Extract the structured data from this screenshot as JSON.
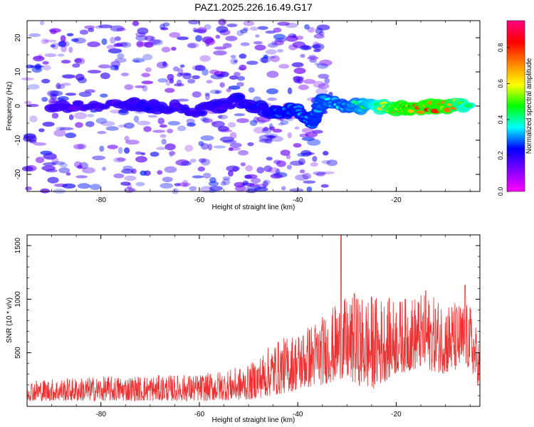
{
  "figure": {
    "title": "PAZ1.2025.226.16.49.G17"
  },
  "chart_data": [
    {
      "type": "heatmap",
      "title": "PAZ1.2025.226.16.49.G17",
      "xlabel": "Height of straight line (km)",
      "ylabel": "Frequency (Hz)",
      "xlim": [
        -95,
        -3
      ],
      "ylim": [
        -25,
        25
      ],
      "xticks": [
        -80,
        -60,
        -40,
        -20
      ],
      "yticks": [
        -20,
        -10,
        0,
        10,
        20
      ],
      "colorbar": {
        "label": "Normalized spectral amplitude",
        "range": [
          0,
          0.95
        ],
        "ticks": [
          0.0,
          0.2,
          0.4,
          0.6,
          0.8
        ],
        "colormap": [
          "#ff00ff",
          "#8000ff",
          "#0000ff",
          "#00ffff",
          "#00ff00",
          "#ffff00",
          "#ff8000",
          "#ff0000",
          "#ff0080"
        ]
      },
      "ridge": [
        {
          "x": -90,
          "y": 0,
          "amp": 0.2
        },
        {
          "x": -75,
          "y": 0.8,
          "amp": 0.22
        },
        {
          "x": -70,
          "y": 0.3,
          "amp": 0.25
        },
        {
          "x": -60,
          "y": -1.5,
          "amp": 0.22
        },
        {
          "x": -52,
          "y": 1.5,
          "amp": 0.25
        },
        {
          "x": -45,
          "y": -2,
          "amp": 0.3
        },
        {
          "x": -40,
          "y": -1,
          "amp": 0.35
        },
        {
          "x": -37,
          "y": -5,
          "amp": 0.35
        },
        {
          "x": -35,
          "y": 2,
          "amp": 0.4
        },
        {
          "x": -30,
          "y": 0,
          "amp": 0.4
        },
        {
          "x": -25,
          "y": 0,
          "amp": 0.55
        },
        {
          "x": -20,
          "y": -0.8,
          "amp": 0.85
        },
        {
          "x": -17,
          "y": -0.8,
          "amp": 0.9
        },
        {
          "x": -10,
          "y": 0,
          "amp": 0.9
        },
        {
          "x": -5,
          "y": 0.5,
          "amp": 0.6
        }
      ]
    },
    {
      "type": "line",
      "xlabel": "Height of straight line (km)",
      "ylabel": "SNR (10 * v/v)",
      "xlim": [
        -95,
        -3
      ],
      "ylim": [
        0,
        1600
      ],
      "xticks": [
        -80,
        -60,
        -40,
        -20
      ],
      "yticks": [
        500,
        1000,
        1500
      ],
      "series": [
        {
          "color": "#ee3030",
          "envelope": [
            {
              "x": -95,
              "min": 50,
              "max": 250
            },
            {
              "x": -80,
              "min": 50,
              "max": 280
            },
            {
              "x": -60,
              "min": 50,
              "max": 300
            },
            {
              "x": -50,
              "min": 60,
              "max": 380
            },
            {
              "x": -45,
              "min": 100,
              "max": 600
            },
            {
              "x": -40,
              "min": 150,
              "max": 700
            },
            {
              "x": -35,
              "min": 200,
              "max": 850
            },
            {
              "x": -31,
              "min": 250,
              "max": 1000
            },
            {
              "x": -25,
              "min": 150,
              "max": 1050
            },
            {
              "x": -20,
              "min": 300,
              "max": 1000
            },
            {
              "x": -15,
              "min": 350,
              "max": 1050
            },
            {
              "x": -10,
              "min": 300,
              "max": 1000
            },
            {
              "x": -5,
              "min": 350,
              "max": 950
            },
            {
              "x": -3,
              "min": 150,
              "max": 600
            }
          ],
          "peaks": [
            {
              "x": -31.2,
              "y": 1600
            },
            {
              "x": -6,
              "y": 1130
            },
            {
              "x": -14,
              "y": 1080
            },
            {
              "x": -28.5,
              "y": 1050
            }
          ]
        }
      ]
    }
  ]
}
